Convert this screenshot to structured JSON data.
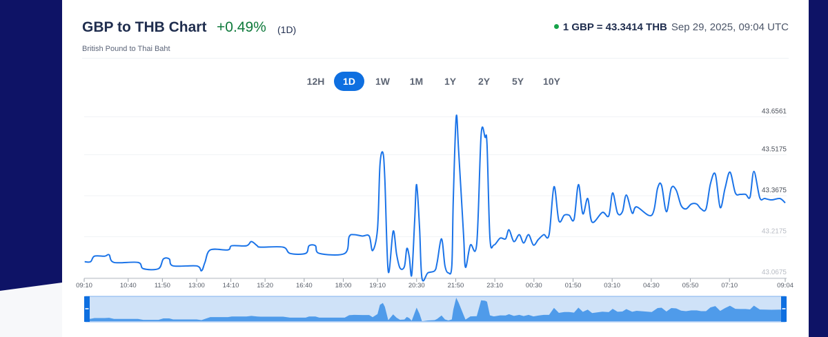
{
  "header": {
    "title": "GBP to THB Chart",
    "change": "+0.49%",
    "period": "(1D)",
    "subtitle": "British Pound to Thai Baht"
  },
  "rate": {
    "label": "1 GBP = 43.3414 THB",
    "timestamp": "Sep 29, 2025, 09:04 UTC",
    "status_color": "#16a34a"
  },
  "tabs": [
    {
      "label": "12H"
    },
    {
      "label": "1D",
      "active": true
    },
    {
      "label": "1W"
    },
    {
      "label": "1M"
    },
    {
      "label": "1Y"
    },
    {
      "label": "2Y"
    },
    {
      "label": "5Y"
    },
    {
      "label": "10Y"
    }
  ],
  "colors": {
    "line": "#1a73e8",
    "accent": "#0e6fe0",
    "positive": "#0f7a3c",
    "background": "#0e1366"
  },
  "chart_data": {
    "type": "line",
    "title": "",
    "xlabel": "",
    "ylabel": "",
    "ylim": [
      43.0675,
      43.6561
    ],
    "y_ticks": [
      "43.6561",
      "43.5175",
      "43.3675",
      "43.2175",
      "43.0675"
    ],
    "x_ticks": [
      "09:10",
      "10:40",
      "11:50",
      "13:00",
      "14:10",
      "15:20",
      "16:40",
      "18:00",
      "19:10",
      "20:30",
      "21:50",
      "23:10",
      "00:30",
      "01:50",
      "03:10",
      "04:30",
      "05:50",
      "07:10",
      "09:04"
    ],
    "grid": true,
    "navigator": true,
    "points": [
      [
        "09:11",
        43.126
      ],
      [
        "09:23",
        43.126
      ],
      [
        "09:31",
        43.1463
      ],
      [
        "09:52",
        43.1463
      ],
      [
        "10:01",
        43.1514
      ],
      [
        "10:11",
        43.1235
      ],
      [
        "11:00",
        43.1235
      ],
      [
        "11:11",
        43.1006
      ],
      [
        "11:42",
        43.1006
      ],
      [
        "11:52",
        43.1362
      ],
      [
        "12:04",
        43.1362
      ],
      [
        "12:12",
        43.1108
      ],
      [
        "13:00",
        43.1108
      ],
      [
        "13:10",
        43.093
      ],
      [
        "13:17",
        43.1235
      ],
      [
        "13:28",
        43.1692
      ],
      [
        "14:04",
        43.1692
      ],
      [
        "14:12",
        43.1845
      ],
      [
        "14:42",
        43.1845
      ],
      [
        "14:52",
        43.1997
      ],
      [
        "15:04",
        43.1845
      ],
      [
        "15:11",
        43.1794
      ],
      [
        "15:57",
        43.1794
      ],
      [
        "16:11",
        43.1565
      ],
      [
        "16:43",
        43.1565
      ],
      [
        "16:50",
        43.1845
      ],
      [
        "17:03",
        43.1845
      ],
      [
        "17:11",
        43.1565
      ],
      [
        "18:03",
        43.1565
      ],
      [
        "18:12",
        43.2175
      ],
      [
        "18:22",
        43.2251
      ],
      [
        "18:39",
        43.2201
      ],
      [
        "18:53",
        43.2201
      ],
      [
        "19:00",
        43.1667
      ],
      [
        "19:10",
        43.2455
      ],
      [
        "19:15",
        43.4793
      ],
      [
        "19:21",
        43.5251
      ],
      [
        "19:25",
        43.4285
      ],
      [
        "19:32",
        43.0904
      ],
      [
        "19:42",
        43.2379
      ],
      [
        "19:49",
        43.154
      ],
      [
        "19:56",
        43.1031
      ],
      [
        "20:05",
        43.1082
      ],
      [
        "20:10",
        43.1743
      ],
      [
        "20:15",
        43.1438
      ],
      [
        "20:20",
        43.0777
      ],
      [
        "20:26",
        43.276
      ],
      [
        "20:30",
        43.4082
      ],
      [
        "20:36",
        43.2506
      ],
      [
        "20:41",
        43.065
      ],
      [
        "20:53",
        43.0853
      ],
      [
        "21:07",
        43.093
      ],
      [
        "21:12",
        43.1235
      ],
      [
        "21:21",
        43.2099
      ],
      [
        "21:28",
        43.1108
      ],
      [
        "21:35",
        43.0853
      ],
      [
        "21:42",
        43.1108
      ],
      [
        "21:45",
        43.3522
      ],
      [
        "21:51",
        43.6561
      ],
      [
        "21:56",
        43.5302
      ],
      [
        "22:06",
        43.2251
      ],
      [
        "22:10",
        43.1057
      ],
      [
        "22:20",
        43.187
      ],
      [
        "22:33",
        43.1921
      ],
      [
        "22:42",
        43.5912
      ],
      [
        "22:50",
        43.581
      ],
      [
        "22:54",
        43.5556
      ],
      [
        "23:00",
        43.2124
      ],
      [
        "23:08",
        43.187
      ],
      [
        "23:21",
        43.2124
      ],
      [
        "23:32",
        43.2099
      ],
      [
        "23:39",
        43.2429
      ],
      [
        "23:49",
        43.1997
      ],
      [
        "00:00",
        43.2251
      ],
      [
        "00:09",
        43.1946
      ],
      [
        "00:19",
        43.2251
      ],
      [
        "00:29",
        43.187
      ],
      [
        "00:39",
        43.2074
      ],
      [
        "00:50",
        43.2251
      ],
      [
        "01:01",
        43.2251
      ],
      [
        "01:11",
        43.4005
      ],
      [
        "01:21",
        43.276
      ],
      [
        "01:32",
        43.2963
      ],
      [
        "01:42",
        43.2963
      ],
      [
        "01:52",
        43.2811
      ],
      [
        "02:01",
        43.4082
      ],
      [
        "02:10",
        43.3014
      ],
      [
        "02:20",
        43.3573
      ],
      [
        "02:29",
        43.2709
      ],
      [
        "02:50",
        43.3065
      ],
      [
        "03:03",
        43.2938
      ],
      [
        "03:11",
        43.3777
      ],
      [
        "03:21",
        43.3039
      ],
      [
        "03:31",
        43.309
      ],
      [
        "03:39",
        43.37
      ],
      [
        "03:51",
        43.3039
      ],
      [
        "04:00",
        43.3268
      ],
      [
        "04:31",
        43.2963
      ],
      [
        "04:43",
        43.3955
      ],
      [
        "04:51",
        43.4056
      ],
      [
        "05:01",
        43.309
      ],
      [
        "05:11",
        43.3955
      ],
      [
        "05:21",
        43.3878
      ],
      [
        "05:31",
        43.3319
      ],
      [
        "05:41",
        43.3192
      ],
      [
        "05:52",
        43.337
      ],
      [
        "06:03",
        43.337
      ],
      [
        "06:12",
        43.3192
      ],
      [
        "06:22",
        43.3192
      ],
      [
        "06:31",
        43.4107
      ],
      [
        "06:41",
        43.4463
      ],
      [
        "06:51",
        43.3243
      ],
      [
        "07:01",
        43.3955
      ],
      [
        "07:11",
        43.4539
      ],
      [
        "07:22",
        43.3777
      ],
      [
        "07:32",
        43.3726
      ],
      [
        "07:43",
        43.3726
      ],
      [
        "07:52",
        43.3624
      ],
      [
        "08:00",
        43.4565
      ],
      [
        "08:12",
        43.3599
      ],
      [
        "08:22",
        43.3573
      ],
      [
        "08:36",
        43.3522
      ],
      [
        "08:53",
        43.3573
      ],
      [
        "09:04",
        43.3414
      ]
    ]
  }
}
